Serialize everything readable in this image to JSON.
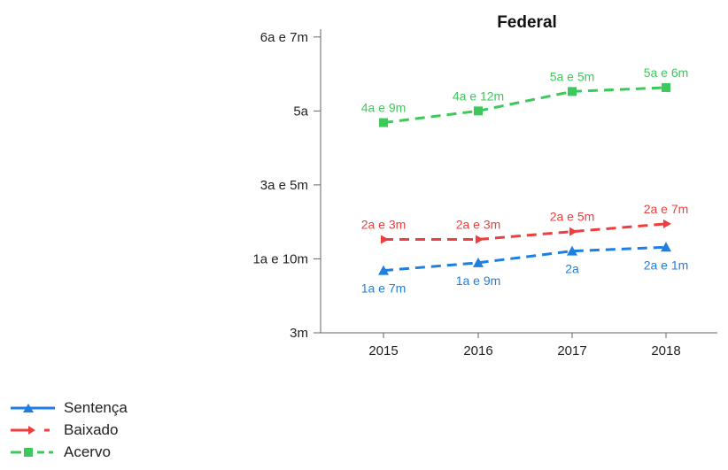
{
  "chart_data": {
    "type": "line",
    "title": "Federal",
    "xlabel": "",
    "ylabel": "",
    "x": [
      "2015",
      "2016",
      "2017",
      "2018"
    ],
    "y_unit": "months",
    "ylim": [
      3,
      81
    ],
    "yticks": [
      {
        "value": 3,
        "label": "3m"
      },
      {
        "value": 22,
        "label": "1a e 10m"
      },
      {
        "value": 41,
        "label": "3a e 5m"
      },
      {
        "value": 60,
        "label": "5a"
      },
      {
        "value": 79,
        "label": "6a e 7m"
      }
    ],
    "grid": false,
    "legend_position": "bottom-left",
    "series": [
      {
        "name": "Sentença",
        "color": "#1f7fe0",
        "marker": "triangle",
        "line": "dashed",
        "values": [
          19,
          21,
          24,
          25
        ],
        "labels": [
          "1a e 7m",
          "1a e 9m",
          "2a",
          "2a e 1m"
        ],
        "label_position": "below"
      },
      {
        "name": "Baixado",
        "color": "#ef3e3e",
        "marker": "arrow",
        "line": "dashed",
        "values": [
          27,
          27,
          29,
          31
        ],
        "labels": [
          "2a e 3m",
          "2a e 3m",
          "2a e 5m",
          "2a e 7m"
        ],
        "label_position": "above"
      },
      {
        "name": "Acervo",
        "color": "#3cc85a",
        "marker": "square",
        "line": "dashed",
        "values": [
          57,
          60,
          65,
          66
        ],
        "labels": [
          "4a e 9m",
          "4a e 12m",
          "5a e 5m",
          "5a e 6m"
        ],
        "label_position": "above"
      }
    ]
  }
}
